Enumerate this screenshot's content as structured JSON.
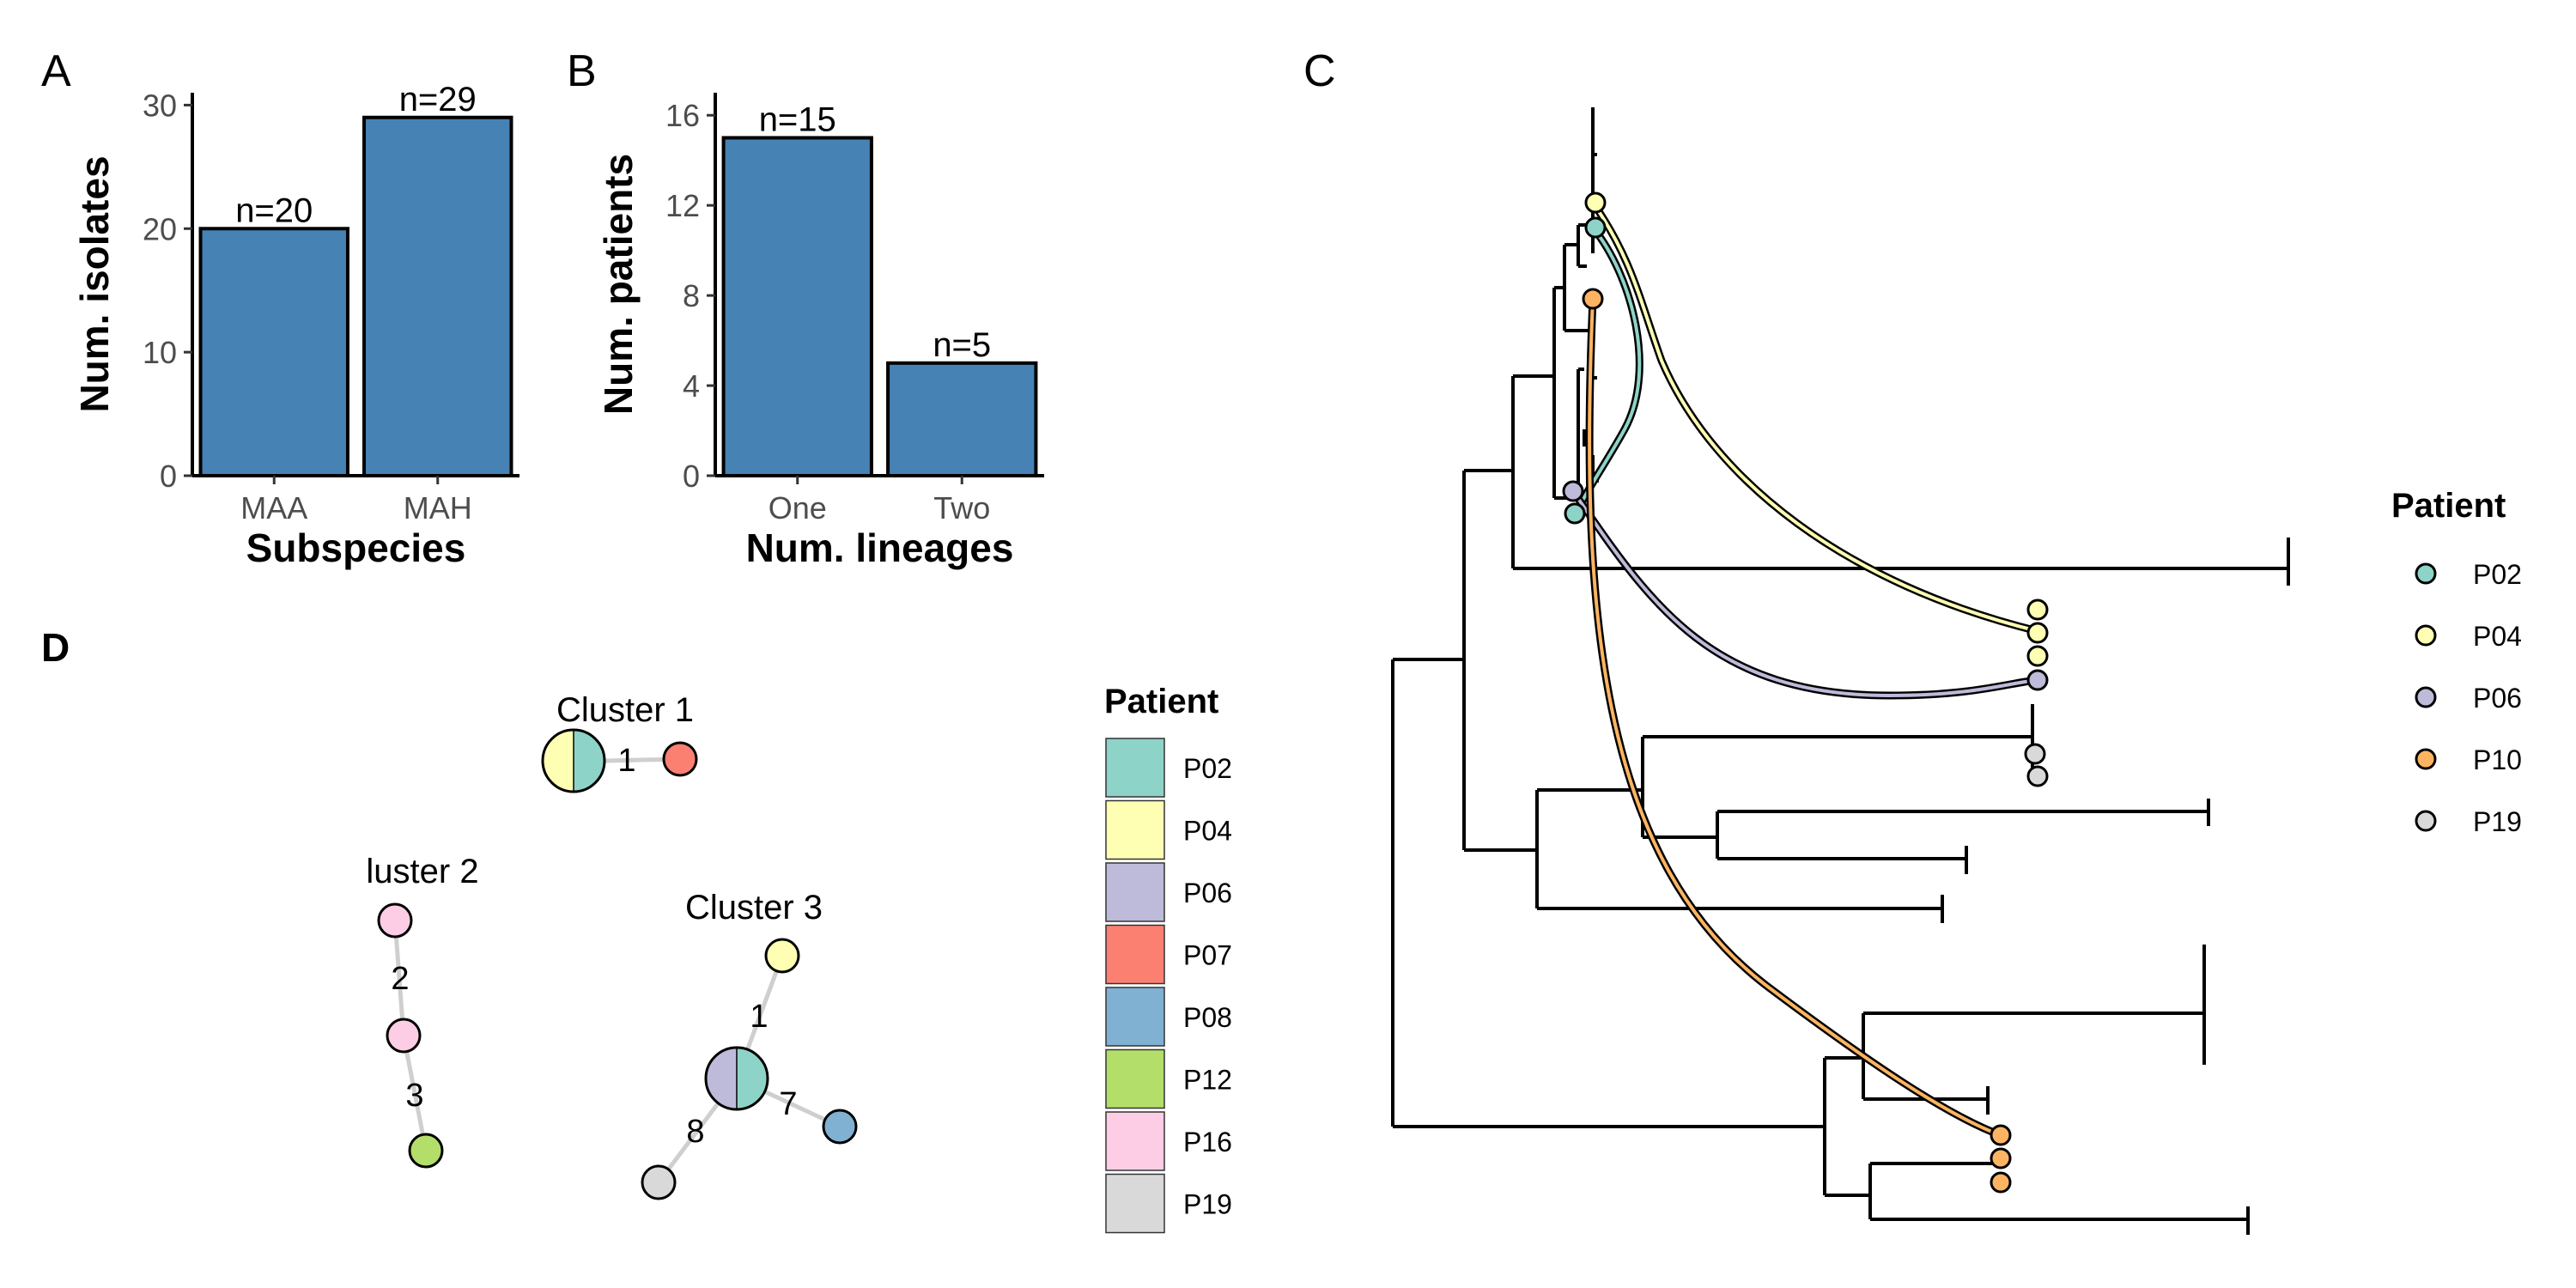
{
  "panels": {
    "A": "A",
    "B": "B",
    "C": "C",
    "D": "D"
  },
  "chart_data": [
    {
      "panel": "A",
      "type": "bar",
      "categories": [
        "MAA",
        "MAH"
      ],
      "values": [
        20,
        29
      ],
      "data_labels": [
        "n=20",
        "n=29"
      ],
      "xlabel": "Subspecies",
      "ylabel": "Num. isolates",
      "ylim": [
        0,
        31
      ],
      "yticks": [
        0,
        10,
        20,
        30
      ],
      "bar_color": "#4682b4"
    },
    {
      "panel": "B",
      "type": "bar",
      "categories": [
        "One",
        "Two"
      ],
      "values": [
        15,
        5
      ],
      "data_labels": [
        "n=15",
        "n=5"
      ],
      "xlabel": "Num. lineages",
      "ylabel": "Num. patients",
      "ylim": [
        0,
        17
      ],
      "yticks": [
        0,
        4,
        8,
        12,
        16
      ],
      "bar_color": "#4682b4"
    },
    {
      "panel": "C",
      "type": "tree",
      "legend_title": "Patient",
      "legend": [
        {
          "name": "P02",
          "color": "#8dd3c7"
        },
        {
          "name": "P04",
          "color": "#ffffb3"
        },
        {
          "name": "P06",
          "color": "#bebada"
        },
        {
          "name": "P10",
          "color": "#fdb462"
        },
        {
          "name": "P19",
          "color": "#d9d9d9"
        }
      ],
      "legend_placement": "right"
    },
    {
      "panel": "D",
      "type": "network",
      "legend_title": "Patient",
      "legend": [
        {
          "name": "P02",
          "color": "#8dd3c7"
        },
        {
          "name": "P04",
          "color": "#ffffb3"
        },
        {
          "name": "P06",
          "color": "#bebada"
        },
        {
          "name": "P07",
          "color": "#fb8072"
        },
        {
          "name": "P08",
          "color": "#80b1d3"
        },
        {
          "name": "P12",
          "color": "#b3de69"
        },
        {
          "name": "P16",
          "color": "#fccde5"
        },
        {
          "name": "P19",
          "color": "#d9d9d9"
        }
      ],
      "clusters": [
        {
          "title": "Cluster 1",
          "edges": [
            {
              "label": "1"
            }
          ]
        },
        {
          "title": "luster 2",
          "edges": [
            {
              "label": "2"
            },
            {
              "label": "3"
            }
          ]
        },
        {
          "title": "Cluster 3",
          "edges": [
            {
              "label": "1"
            },
            {
              "label": "7"
            },
            {
              "label": "8"
            }
          ]
        }
      ]
    }
  ]
}
